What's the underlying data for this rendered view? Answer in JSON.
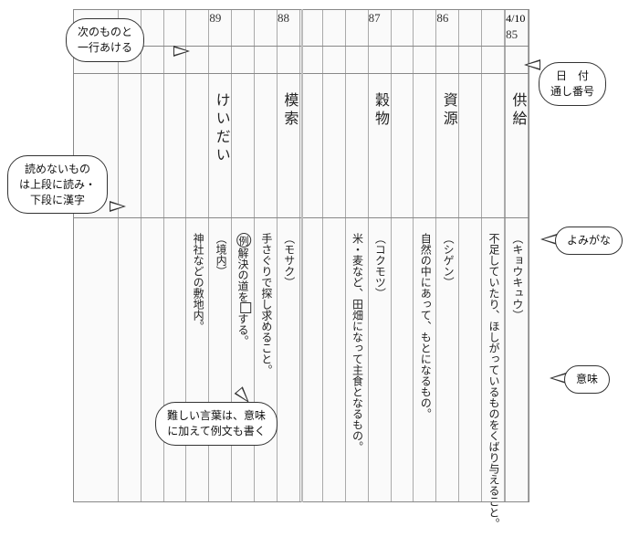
{
  "date": "4/10",
  "entries": [
    {
      "num": "85",
      "word": "供給",
      "yomi": "（キョウキュウ）",
      "meaning": "不足していたり、ほしがっているものをくばり与えること。"
    },
    {
      "num": "86",
      "word": "資源",
      "yomi": "（シゲン）",
      "meaning": "自然の中にあって、もとになるもの。"
    },
    {
      "num": "87",
      "word": "穀物",
      "yomi": "（コクモツ）",
      "meaning": "米・麦など、田畑になって主食となるもの。"
    },
    {
      "num": "88",
      "word": "模索",
      "yomi": "（モサク）",
      "meaning": "手さぐりで探し求めること。"
    },
    {
      "num": "89",
      "word": "けいだい",
      "yomi": "（境内）",
      "meaning": "神社などの敷地内。"
    }
  ],
  "example_prefix": "例",
  "example_text": "解決の道を",
  "example_suffix": "する。",
  "callouts": {
    "gap": "次のものと\n一行あける",
    "date_num": "日　付\n通し番号",
    "upper_lower": "読めないもの\nは上段に読み・\n下段に漢字",
    "yomigana": "よみがな",
    "imi": "意味",
    "example": "難しい言葉は、意味\nに加えて例文も書く"
  },
  "colors": {
    "line": "#888888",
    "text": "#222222",
    "bg": "#ffffff"
  }
}
